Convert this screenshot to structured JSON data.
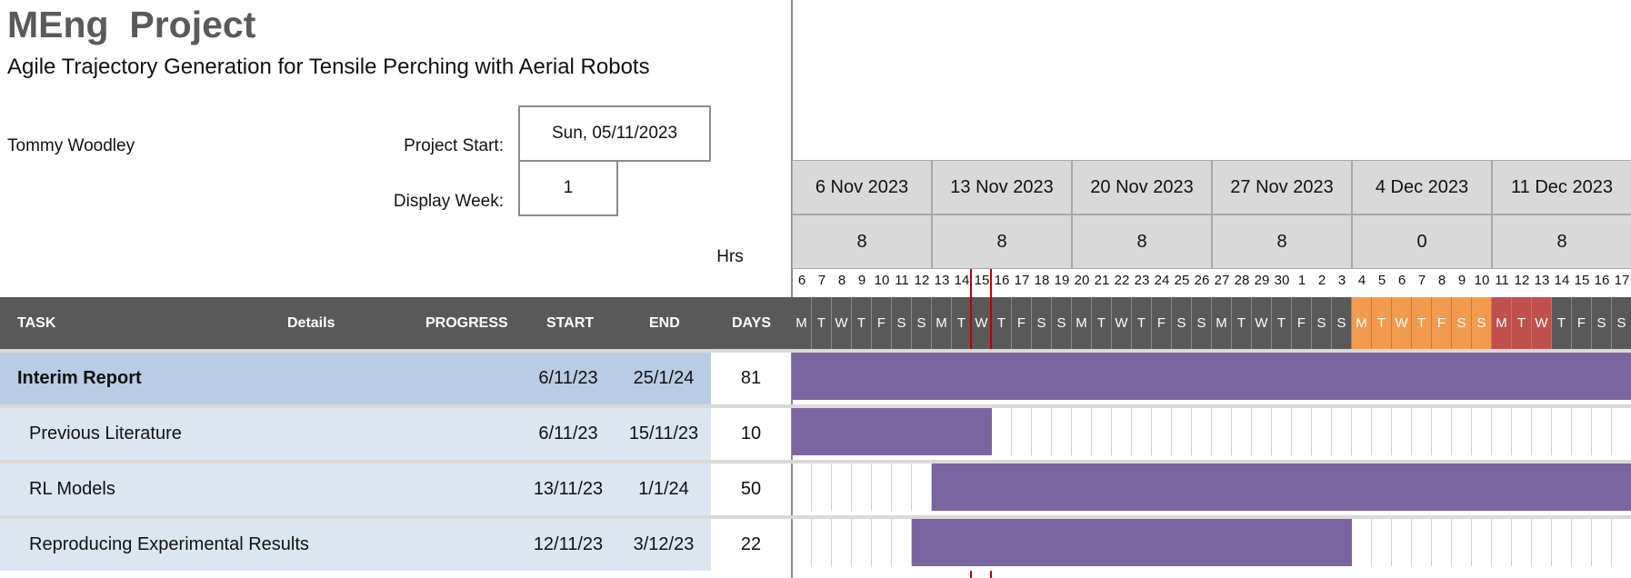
{
  "project": {
    "title": "MEng  Project",
    "subtitle": "Agile Trajectory Generation for Tensile Perching with Aerial Robots",
    "owner": "Tommy Woodley",
    "start_label": "Project Start:",
    "start_value": "Sun, 05/11/2023",
    "week_label": "Display Week:",
    "week_value": "1",
    "hrs_label": "Hrs"
  },
  "weeks": [
    {
      "label": "6 Nov 2023",
      "hrs": "8"
    },
    {
      "label": "13 Nov 2023",
      "hrs": "8"
    },
    {
      "label": "20 Nov 2023",
      "hrs": "8"
    },
    {
      "label": "27 Nov 2023",
      "hrs": "8"
    },
    {
      "label": "4 Dec 2023",
      "hrs": "0"
    },
    {
      "label": "11 Dec 2023",
      "hrs": "8"
    }
  ],
  "day_numbers": [
    "6",
    "7",
    "8",
    "9",
    "10",
    "11",
    "12",
    "13",
    "14",
    "15",
    "16",
    "17",
    "18",
    "19",
    "20",
    "21",
    "22",
    "23",
    "24",
    "25",
    "26",
    "27",
    "28",
    "29",
    "30",
    "1",
    "2",
    "3",
    "4",
    "5",
    "6",
    "7",
    "8",
    "9",
    "10",
    "11",
    "12",
    "13",
    "14",
    "15",
    "16",
    "17"
  ],
  "day_letters": [
    "M",
    "T",
    "W",
    "T",
    "F",
    "S",
    "S"
  ],
  "colors": {
    "header_bg": "#595959",
    "bar": "#7b65a0",
    "group_row": "#b8cce4",
    "task_row": "#dce6f1",
    "holiday_orange": "#f29b4f",
    "holiday_red": "#c0504d",
    "today_line": "#c00000"
  },
  "header": {
    "task": "TASK",
    "details": "Details",
    "progress": "PROGRESS",
    "start": "START",
    "end": "END",
    "days": "DAYS"
  },
  "tasks": [
    {
      "name": "Interim Report",
      "start": "6/11/23",
      "end": "25/1/24",
      "days": "81",
      "group": true
    },
    {
      "name": "Previous Literature",
      "start": "6/11/23",
      "end": "15/11/23",
      "days": "10",
      "group": false
    },
    {
      "name": "RL Models",
      "start": "13/11/23",
      "end": "1/1/24",
      "days": "50",
      "group": false
    },
    {
      "name": "Reproducing Experimental Results",
      "start": "12/11/23",
      "end": "3/12/23",
      "days": "22",
      "group": false
    }
  ]
}
